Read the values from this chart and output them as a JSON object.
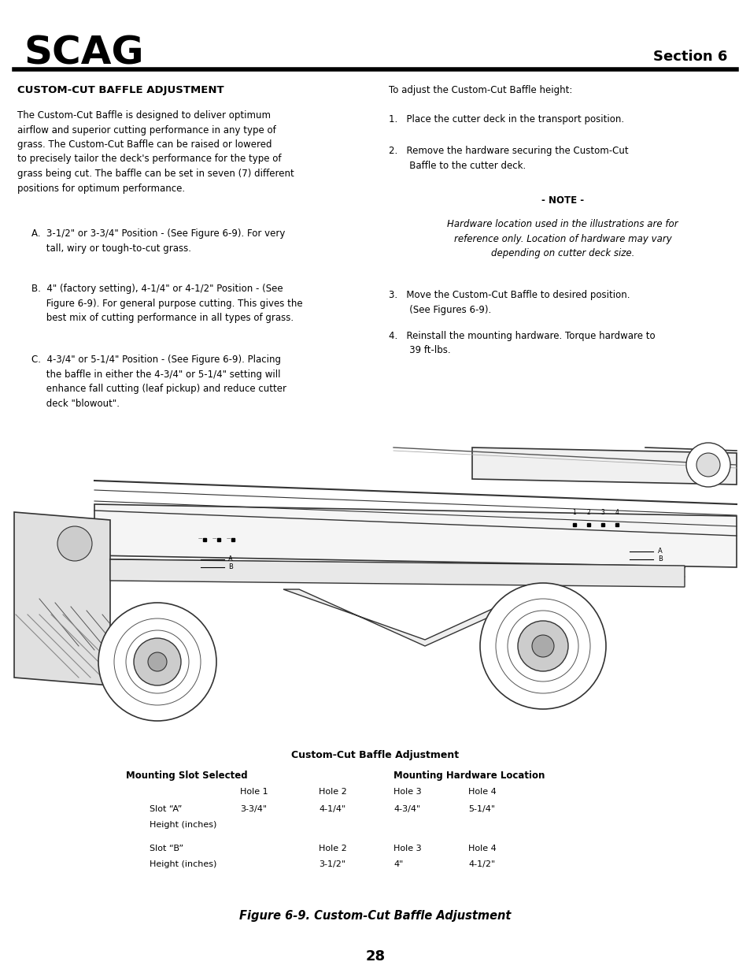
{
  "page_bg": "#ffffff",
  "header_logo_text": "SCAG",
  "header_section_text": "Section 6",
  "section_title": "CUSTOM-CUT BAFFLE ADJUSTMENT",
  "body_text_left": "The Custom-Cut Baffle is designed to deliver optimum\nairflow and superior cutting performance in any type of\ngrass. The Custom-Cut Baffle can be raised or lowered\nto precisely tailor the deck's performance for the type of\ngrass being cut. The baffle can be set in seven (7) different\npositions for optimum performance.",
  "item_A": "A.  3-1/2\" or 3-3/4\" Position - (See Figure 6-9). For very\n     tall, wiry or tough-to-cut grass.",
  "item_B": "B.  4\" (factory setting), 4-1/4\" or 4-1/2\" Position - (See\n     Figure 6-9). For general purpose cutting. This gives the\n     best mix of cutting performance in all types of grass.",
  "item_C": "C.  4-3/4\" or 5-1/4\" Position - (See Figure 6-9). Placing\n     the baffle in either the 4-3/4\" or 5-1/4\" setting will\n     enhance fall cutting (leaf pickup) and reduce cutter\n     deck \"blowout\".",
  "right_intro": "To adjust the Custom-Cut Baffle height:",
  "step1": "1.   Place the cutter deck in the transport position.",
  "step2": "2.   Remove the hardware securing the Custom-Cut\n       Baffle to the cutter deck.",
  "note_title": "- NOTE -",
  "note_body": "Hardware location used in the illustrations are for\nreference only. Location of hardware may vary\ndepending on cutter deck size.",
  "step3": "3.   Move the Custom-Cut Baffle to desired position.\n       (See Figures 6-9).",
  "step4": "4.   Reinstall the mounting hardware. Torque hardware to\n       39 ft-lbs.",
  "figure_caption": "Custom-Cut Baffle Adjustment",
  "figure_label": "Figure 6-9. Custom-Cut Baffle Adjustment",
  "page_number": "28",
  "table_header1": "Mounting Slot Selected",
  "table_header2": "Mounting Hardware Location",
  "table_col_headers_a": [
    "Hole 1",
    "Hole 2",
    "Hole 3",
    "Hole 4"
  ],
  "table_row1_label": "Slot “A”",
  "table_row1_vals": [
    "3-3/4\"",
    "4-1/4\"",
    "4-3/4\"",
    "5-1/4\""
  ],
  "table_row1_height_label": "Height (inches)",
  "table_row2_label": "Slot “B”",
  "table_row2_holes": [
    "Hole 2",
    "Hole 3",
    "Hole 4"
  ],
  "table_row2_vals": [
    "3-1/2\"",
    "4\"",
    "4-1/2\""
  ],
  "table_row2_height_label": "Height (inches)"
}
